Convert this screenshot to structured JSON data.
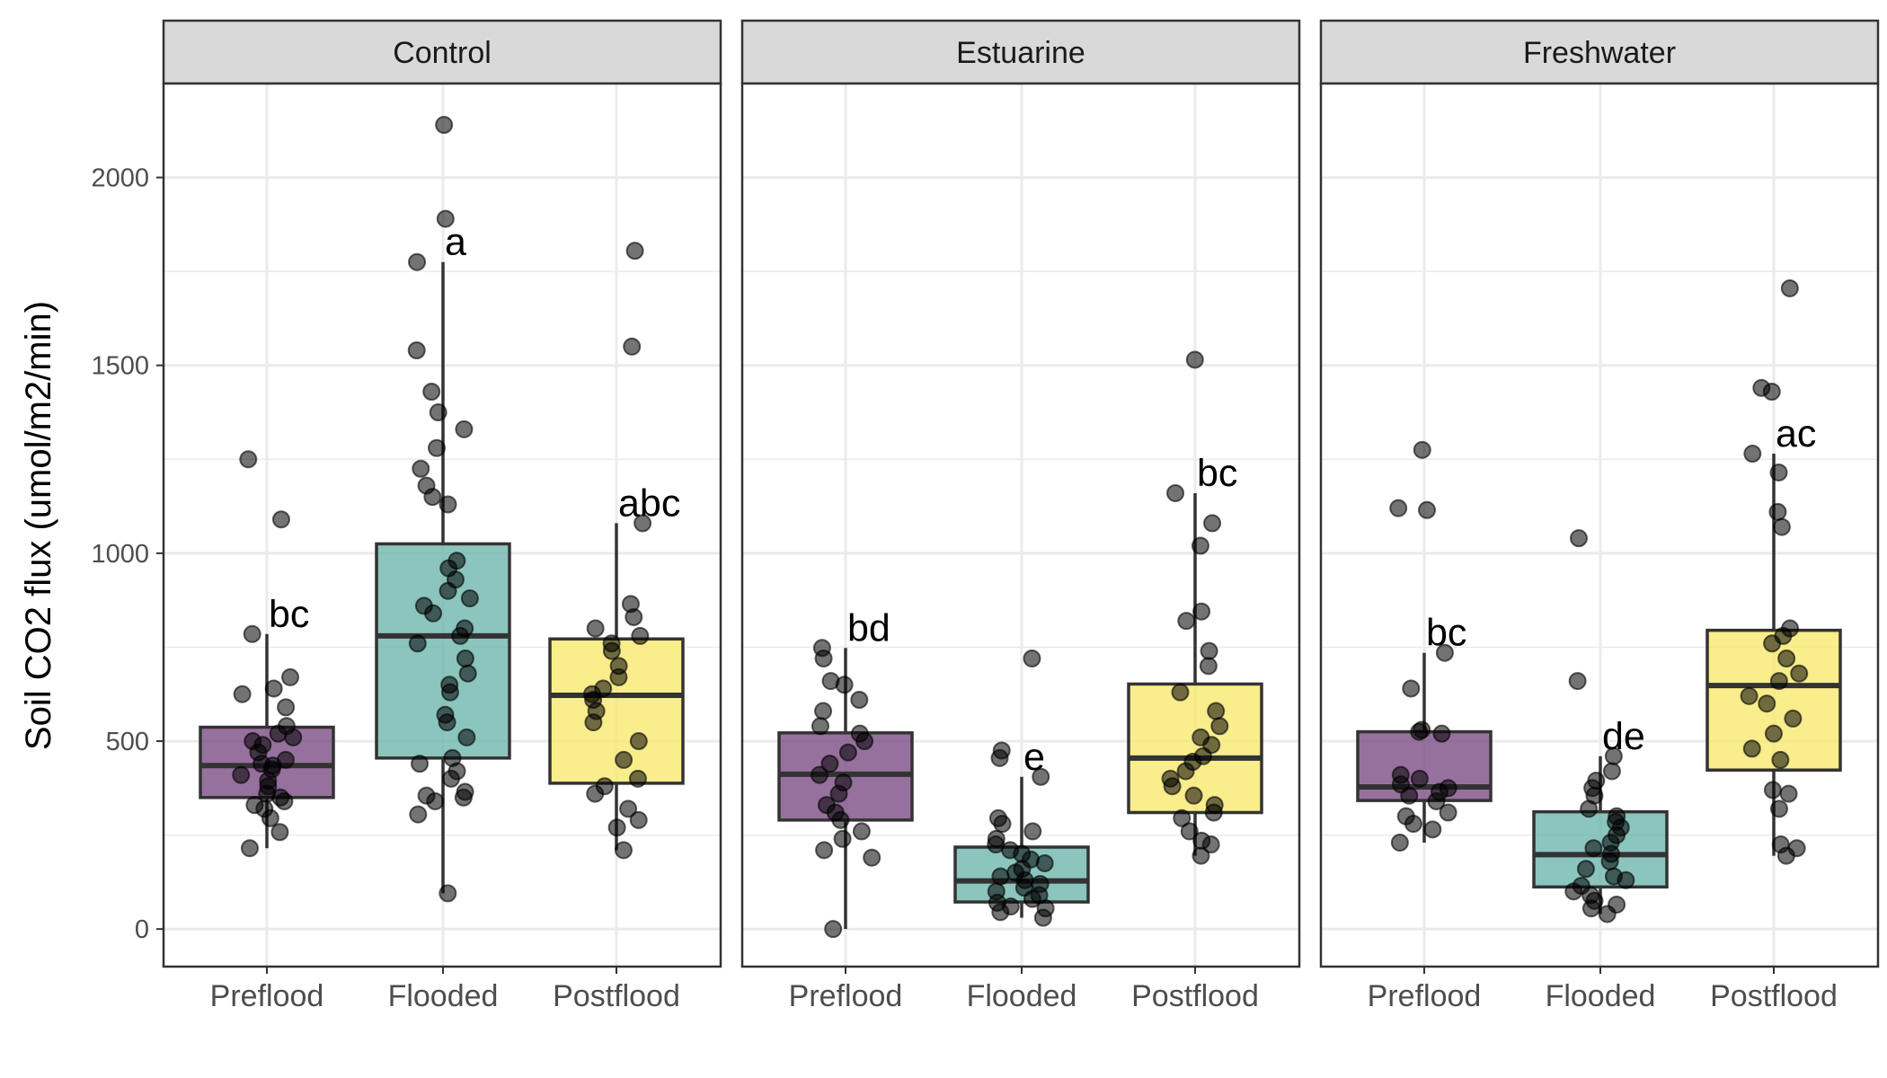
{
  "chart_data": {
    "type": "boxplot",
    "ylabel": "Soil CO2 flux (umol/m2/min)",
    "ylim": [
      -100,
      2250
    ],
    "yticks": [
      0,
      500,
      1000,
      1500,
      2000
    ],
    "categories": [
      "Preflood",
      "Flooded",
      "Postflood"
    ],
    "colors": {
      "Preflood": "#7d4e86",
      "Flooded": "#6eb6ae",
      "Postflood": "#f8e86f"
    },
    "grid": true,
    "legend": "none",
    "facets": [
      {
        "name": "Control",
        "groups": [
          {
            "category": "Preflood",
            "q1": 350,
            "median": 435,
            "q3": 537,
            "whisker_low": 215,
            "whisker_high": 785,
            "letter": "bc",
            "points": [
              215,
              258,
              295,
              320,
              330,
              340,
              350,
              360,
              380,
              395,
              410,
              425,
              435,
              440,
              450,
              470,
              490,
              500,
              510,
              520,
              540,
              590,
              625,
              640,
              670,
              785,
              1090,
              1250
            ]
          },
          {
            "category": "Flooded",
            "q1": 455,
            "median": 780,
            "q3": 1025,
            "whisker_low": 95,
            "whisker_high": 1775,
            "letter": "a",
            "points": [
              95,
              305,
              340,
              350,
              355,
              365,
              400,
              420,
              440,
              455,
              510,
              550,
              570,
              630,
              650,
              680,
              720,
              760,
              780,
              800,
              840,
              860,
              880,
              900,
              930,
              960,
              980,
              1130,
              1150,
              1180,
              1225,
              1280,
              1330,
              1375,
              1430,
              1540,
              1775,
              1890,
              2140
            ]
          },
          {
            "category": "Postflood",
            "q1": 388,
            "median": 622,
            "q3": 772,
            "whisker_low": 210,
            "whisker_high": 1080,
            "letter": "abc",
            "points": [
              210,
              270,
              290,
              320,
              360,
              380,
              400,
              450,
              500,
              550,
              580,
              610,
              625,
              640,
              670,
              700,
              740,
              760,
              780,
              800,
              830,
              865,
              1080,
              1550,
              1805
            ]
          }
        ]
      },
      {
        "name": "Estuarine",
        "groups": [
          {
            "category": "Preflood",
            "q1": 290,
            "median": 412,
            "q3": 522,
            "whisker_low": 0,
            "whisker_high": 748,
            "letter": "bd",
            "points": [
              0,
              190,
              210,
              240,
              260,
              290,
              310,
              330,
              360,
              390,
              410,
              440,
              470,
              500,
              520,
              540,
              580,
              610,
              650,
              660,
              720,
              748
            ]
          },
          {
            "category": "Flooded",
            "q1": 72,
            "median": 128,
            "q3": 218,
            "whisker_low": 30,
            "whisker_high": 405,
            "letter": "e",
            "points": [
              30,
              45,
              55,
              60,
              70,
              80,
              90,
              100,
              110,
              120,
              130,
              140,
              150,
              160,
              175,
              185,
              200,
              210,
              225,
              240,
              260,
              280,
              295,
              405,
              455,
              475,
              720
            ]
          },
          {
            "category": "Postflood",
            "q1": 310,
            "median": 455,
            "q3": 652,
            "whisker_low": 195,
            "whisker_high": 1160,
            "letter": "bc",
            "points": [
              195,
              225,
              235,
              260,
              295,
              310,
              330,
              355,
              380,
              400,
              420,
              445,
              460,
              490,
              510,
              540,
              580,
              630,
              700,
              740,
              820,
              845,
              1020,
              1080,
              1160,
              1515
            ]
          }
        ]
      },
      {
        "name": "Freshwater",
        "groups": [
          {
            "category": "Preflood",
            "q1": 342,
            "median": 378,
            "q3": 525,
            "whisker_low": 230,
            "whisker_high": 735,
            "letter": "bc",
            "points": [
              230,
              265,
              280,
              300,
              310,
              340,
              355,
              365,
              375,
              385,
              400,
              410,
              520,
              525,
              530,
              640,
              735,
              1115,
              1120,
              1275
            ]
          },
          {
            "category": "Flooded",
            "q1": 112,
            "median": 198,
            "q3": 312,
            "whisker_low": 40,
            "whisker_high": 460,
            "letter": "de",
            "points": [
              40,
              55,
              65,
              75,
              90,
              100,
              115,
              130,
              140,
              160,
              180,
              200,
              215,
              230,
              250,
              270,
              285,
              300,
              320,
              355,
              375,
              395,
              420,
              460,
              660,
              1040
            ]
          },
          {
            "category": "Postflood",
            "q1": 423,
            "median": 648,
            "q3": 795,
            "whisker_low": 195,
            "whisker_high": 1265,
            "letter": "ac",
            "points": [
              195,
              215,
              225,
              320,
              360,
              370,
              450,
              480,
              520,
              560,
              600,
              620,
              660,
              680,
              720,
              760,
              780,
              800,
              1070,
              1110,
              1215,
              1265,
              1430,
              1440,
              1705
            ]
          }
        ]
      }
    ]
  }
}
